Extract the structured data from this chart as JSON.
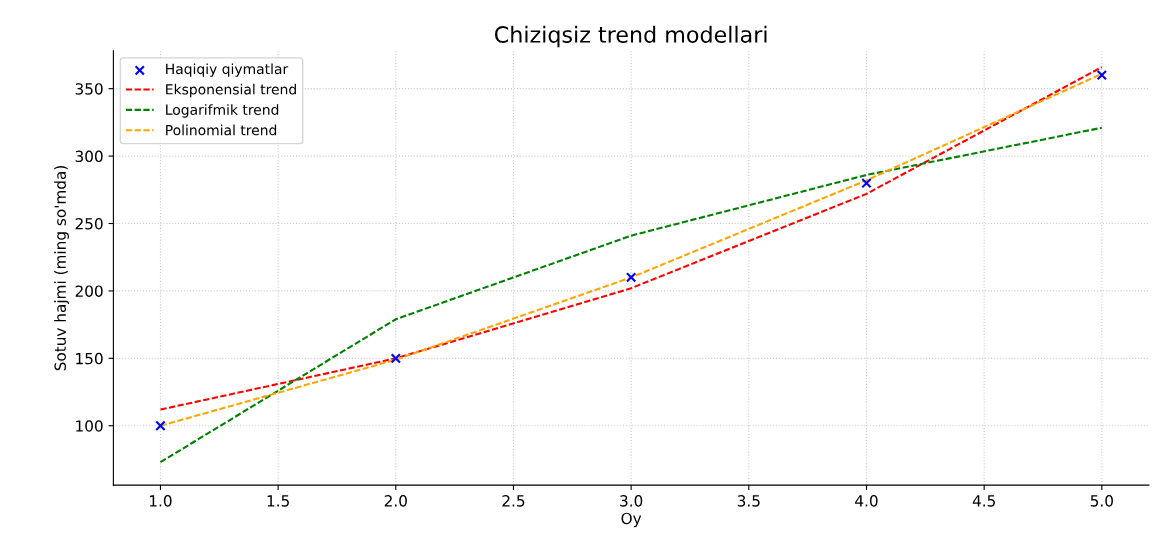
{
  "chart_data": {
    "type": "line",
    "title": "Chiziqsiz trend modellari",
    "xlabel": "Oy",
    "ylabel": "Sotuv hajmi (ming so'mda)",
    "x": [
      1,
      2,
      3,
      4,
      5
    ],
    "series": [
      {
        "name": "Haqiqiy qiymatlar",
        "type": "scatter",
        "marker": "cross",
        "color": "#0000ff",
        "values": [
          100,
          150,
          210,
          280,
          360
        ]
      },
      {
        "name": "Eksponensial trend",
        "color": "#ff0000",
        "line_style": "dashed",
        "values": [
          112,
          150,
          202,
          272,
          366
        ]
      },
      {
        "name": "Logarifmik trend",
        "color": "#008000",
        "line_style": "dashed",
        "values": [
          73,
          179,
          241,
          286,
          321
        ]
      },
      {
        "name": "Polinomial trend",
        "color": "#ffa500",
        "line_style": "dashed",
        "values": [
          100,
          149,
          210,
          282,
          361
        ]
      }
    ],
    "xlim": [
      0.8,
      5.2
    ],
    "xticks": [
      {
        "value": 1,
        "label": "1.0"
      },
      {
        "value": 1.5,
        "label": "1.5"
      },
      {
        "value": 2,
        "label": "2.0"
      },
      {
        "value": 2.5,
        "label": "2.5"
      },
      {
        "value": 3,
        "label": "3.0"
      },
      {
        "value": 3.5,
        "label": "3.5"
      },
      {
        "value": 4,
        "label": "4.0"
      },
      {
        "value": 4.5,
        "label": "4.5"
      },
      {
        "value": 5,
        "label": "5.0"
      }
    ],
    "ylim": [
      56,
      378
    ],
    "yticks": [
      100,
      150,
      200,
      250,
      300,
      350
    ],
    "grid": true,
    "legend": "top left"
  }
}
